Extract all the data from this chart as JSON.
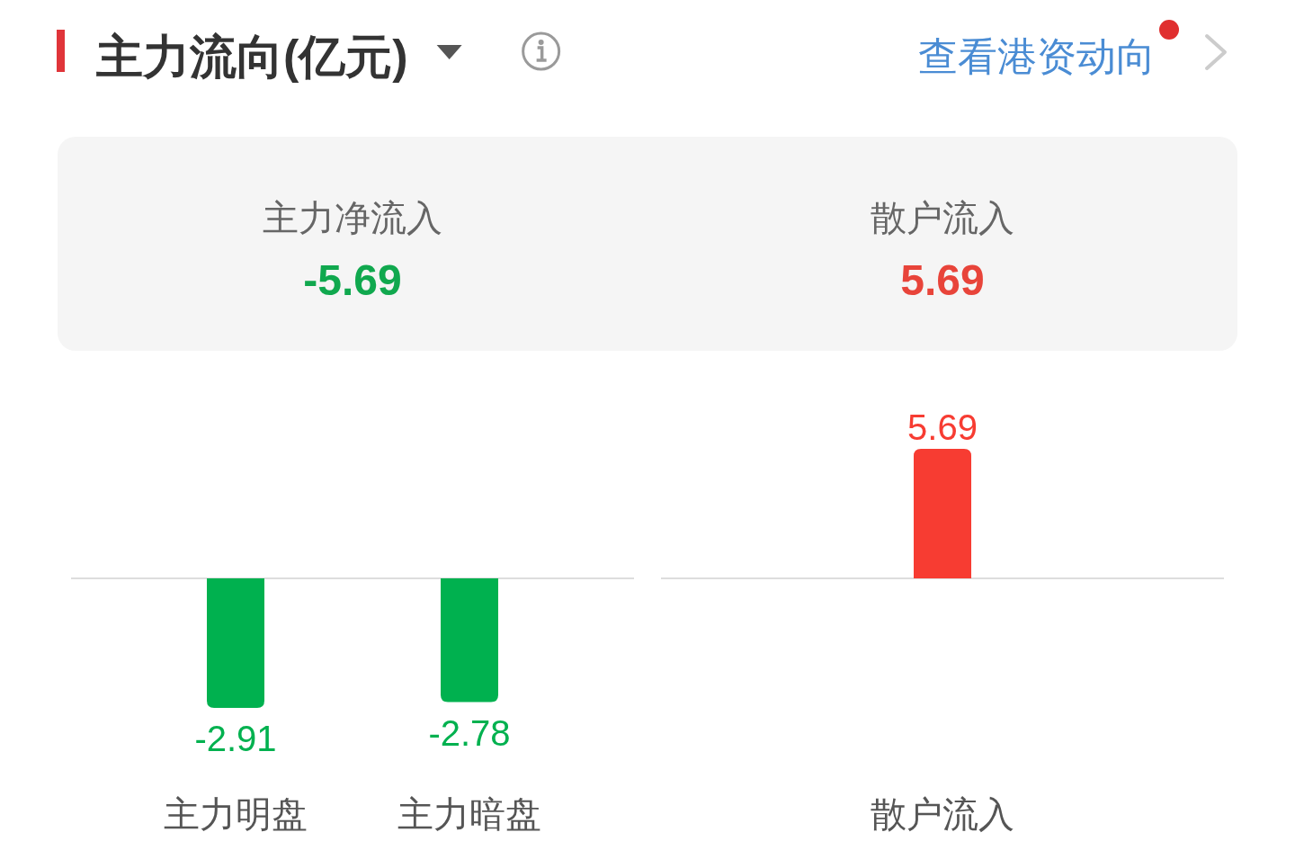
{
  "chart_data": [
    {
      "type": "other",
      "title": "主力流向(亿元)",
      "annotations": [
        "查看港资动向"
      ],
      "categories": [
        "主力净流入",
        "散户流入"
      ],
      "values": [
        -5.69,
        5.69
      ],
      "data_labels": true
    },
    {
      "type": "bar",
      "categories": [
        "主力明盘",
        "主力暗盘"
      ],
      "values": [
        -2.91,
        -2.78
      ],
      "colors": [
        "#00b14f",
        "#00b14f"
      ],
      "data_labels": true,
      "tick_labels": "x"
    },
    {
      "type": "bar",
      "categories": [
        "散户流入"
      ],
      "values": [
        5.69
      ],
      "colors": [
        "#f73c32"
      ],
      "data_labels": true,
      "tick_labels": "x"
    }
  ]
}
